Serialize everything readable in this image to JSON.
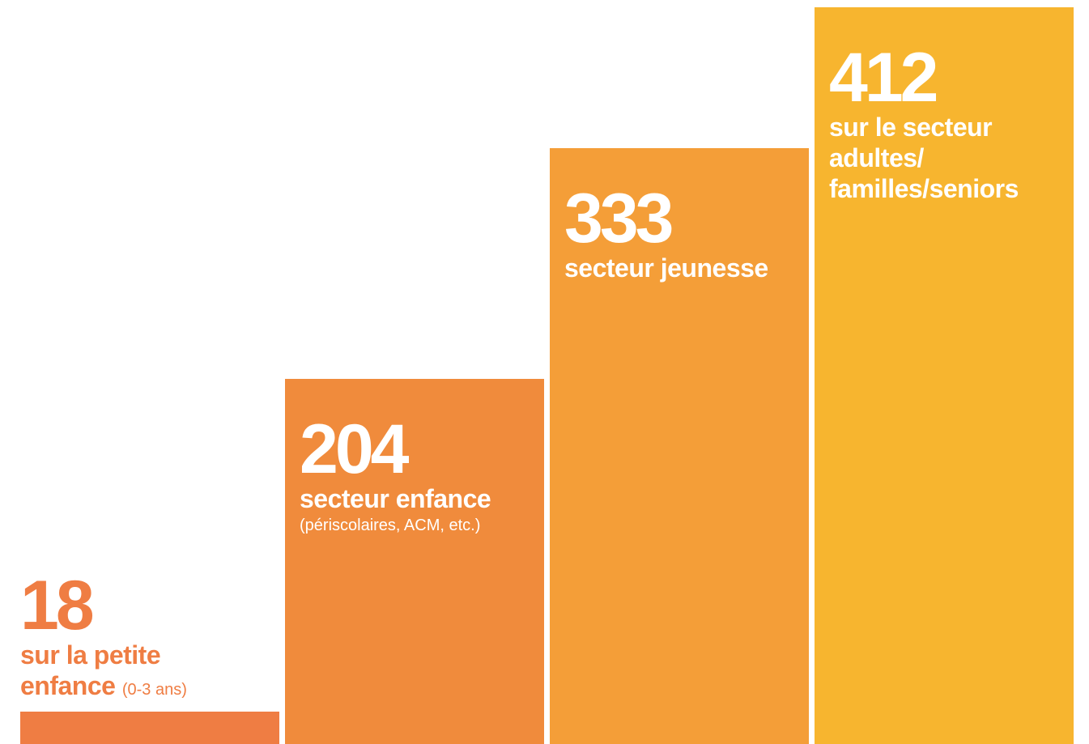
{
  "chart_data": {
    "type": "bar",
    "title": "",
    "xlabel": "",
    "ylabel": "",
    "ylim": [
      0,
      412
    ],
    "grid": false,
    "legend": "none",
    "categories": [
      "sur la petite enfance (0-3 ans)",
      "secteur enfance (périscolaires, ACM, etc.)",
      "secteur jeunesse",
      "sur le secteur adultes/familles/seniors"
    ],
    "values": [
      18,
      204,
      333,
      412
    ],
    "bars": [
      {
        "value": "18",
        "label_lines": [
          "sur la petite",
          "enfance"
        ],
        "label_inline_sub": "(0-3 ans)",
        "sub": "",
        "color": "#EF7D43",
        "text_color": "#EF7D43",
        "label_position": "above"
      },
      {
        "value": "204",
        "label_lines": [
          "secteur enfance"
        ],
        "label_inline_sub": "",
        "sub": "(périscolaires, ACM, etc.)",
        "color": "#F08B3C",
        "text_color": "#FFFFFF",
        "label_position": "inside"
      },
      {
        "value": "333",
        "label_lines": [
          "secteur jeunesse"
        ],
        "label_inline_sub": "",
        "sub": "",
        "color": "#F49E38",
        "text_color": "#FFFFFF",
        "label_position": "inside"
      },
      {
        "value": "412",
        "label_lines": [
          "sur le secteur",
          "adultes/",
          "familles/seniors"
        ],
        "label_inline_sub": "",
        "sub": "",
        "color": "#F7B52F",
        "text_color": "#FFFFFF",
        "label_position": "inside"
      }
    ]
  }
}
